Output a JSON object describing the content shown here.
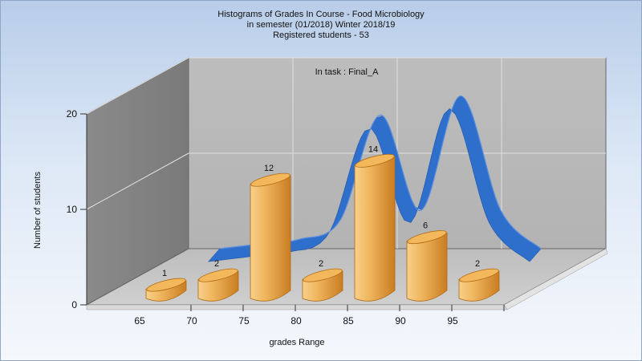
{
  "title": {
    "line1": "Histograms of Grades  In Course - Food Microbiology",
    "line2": "in semester  (01/2018) Winter 2018/19",
    "line3": "Registered students - 53"
  },
  "chart_data": {
    "type": "bar",
    "subtitle": "In task : Final_A",
    "xlabel": "grades Range",
    "ylabel": "Number of students",
    "categories": [
      "65",
      "70",
      "75",
      "80",
      "85",
      "90",
      "95"
    ],
    "values": [
      1,
      2,
      12,
      2,
      14,
      6,
      2
    ],
    "ylim": [
      0,
      20
    ],
    "yticks": [
      0,
      10,
      20
    ],
    "grid": true,
    "curve": {
      "type": "ribbon",
      "values": [
        0,
        0.5,
        1.0,
        3.0,
        14.0,
        4.0,
        16.0,
        4.0,
        0
      ]
    },
    "colors": {
      "bar": "#e39a3c",
      "bar_light": "#f6c777",
      "bar_top": "#f3b85b",
      "curve": "#2f6fcc",
      "back_wall": "#b5b5b5",
      "side_wall": "#8f8f8f",
      "floor": "#c4c4c4"
    }
  }
}
